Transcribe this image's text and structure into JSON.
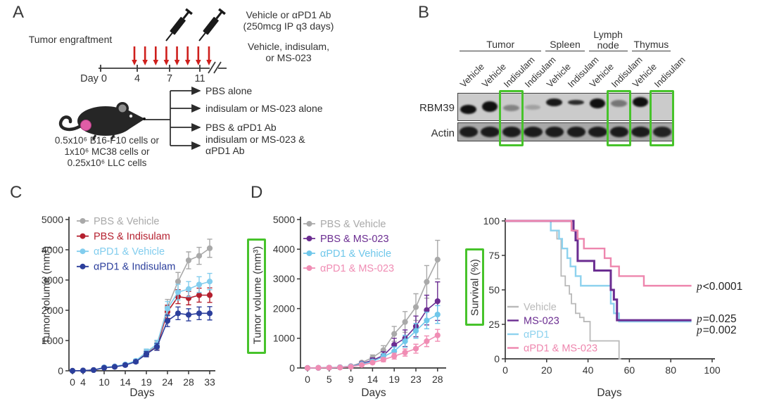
{
  "panels": {
    "a": {
      "label": "A",
      "engraftment": "Tumor engraftment",
      "timeline_ticks": [
        "Day 0",
        "4",
        "7",
        "11"
      ],
      "injection_arrow_count": 8,
      "note1": [
        "Vehicle or αPD1 Ab",
        "(250mcg IP q3 days)"
      ],
      "note2": [
        "Vehicle, indisulam,",
        "or MS-023"
      ],
      "branches": [
        "PBS alone",
        "indisulam or MS-023 alone",
        "PBS & αPD1 Ab",
        "indisulam or MS-023 & αPD1 Ab"
      ],
      "cells": [
        "0.5x10⁶ B16-F10 cells or",
        "1x10⁶ MC38 cells or",
        "0.25x10⁶ LLC cells"
      ]
    },
    "b": {
      "label": "B",
      "tissues": [
        {
          "name": "Tumor",
          "lanes": [
            "Vehicle",
            "Vehicle",
            "Indisulam",
            "Indisulam"
          ]
        },
        {
          "name": "Spleen",
          "lanes": [
            "Vehicle",
            "Indisulam"
          ]
        },
        {
          "name": "Lymph node",
          "lanes": [
            "Vehicle",
            "Indisulam"
          ]
        },
        {
          "name": "Thymus",
          "lanes": [
            "Vehicle",
            "Indisulam"
          ]
        }
      ],
      "proteins": [
        {
          "name": "RBM39",
          "intensities": [
            1,
            1,
            0.38,
            0.22,
            0.95,
            0.85,
            1,
            0.45,
            1,
            0
          ]
        },
        {
          "name": "Actin",
          "intensities": [
            0.92,
            0.92,
            0.92,
            0.92,
            0.92,
            0.92,
            0.92,
            0.92,
            0.92,
            0.88
          ]
        }
      ],
      "highlighted_lanes": [
        3,
        8,
        10
      ],
      "highlight_color": "#47c32b"
    },
    "c": {
      "label": "C"
    },
    "d": {
      "label": "D"
    }
  },
  "chart_data": [
    {
      "id": "tumor_volume_c",
      "type": "line",
      "xlabel": "Days",
      "ylabel": "Tumor volume (mm³)",
      "ylim": [
        0,
        5000
      ],
      "yticks": [
        0,
        1000,
        2000,
        3000,
        4000,
        5000
      ],
      "x": [
        0,
        4,
        7,
        10,
        12,
        14,
        16,
        19,
        21,
        24,
        26,
        28,
        30,
        33
      ],
      "xticks": [
        0,
        4,
        10,
        14,
        19,
        24,
        28,
        33
      ],
      "series": [
        {
          "name": "PBS & Vehicle",
          "color": "#a9a9a9",
          "values": [
            0,
            8,
            25,
            110,
            140,
            200,
            320,
            600,
            850,
            2100,
            2950,
            3650,
            3800,
            4050
          ],
          "err": [
            0,
            0,
            0,
            25,
            30,
            40,
            55,
            100,
            130,
            260,
            300,
            280,
            280,
            300
          ]
        },
        {
          "name": "PBS & Indisulam",
          "color": "#b41f2e",
          "values": [
            0,
            8,
            25,
            105,
            135,
            195,
            310,
            560,
            800,
            1950,
            2450,
            2400,
            2500,
            2500
          ],
          "err": [
            0,
            0,
            0,
            25,
            30,
            40,
            50,
            90,
            120,
            220,
            230,
            220,
            230,
            240
          ]
        },
        {
          "name": "αPD1 & Vehicle",
          "color": "#82cdee",
          "values": [
            0,
            8,
            25,
            115,
            145,
            210,
            330,
            620,
            880,
            2050,
            2600,
            2700,
            2850,
            2950
          ],
          "err": [
            0,
            0,
            0,
            25,
            30,
            40,
            55,
            100,
            130,
            240,
            260,
            250,
            260,
            270
          ]
        },
        {
          "name": "αPD1 & Indisulam",
          "color": "#2c3f9c",
          "values": [
            0,
            8,
            25,
            100,
            130,
            190,
            300,
            550,
            790,
            1650,
            1900,
            1850,
            1900,
            1900
          ],
          "err": [
            0,
            0,
            0,
            25,
            30,
            40,
            50,
            90,
            115,
            190,
            210,
            200,
            210,
            220
          ]
        }
      ]
    },
    {
      "id": "tumor_volume_d",
      "type": "line",
      "xlabel": "Days",
      "ylabel": "Tumor volume (mm³)",
      "ylim": [
        0,
        5000
      ],
      "yticks": [
        0,
        1000,
        2000,
        3000,
        4000,
        5000
      ],
      "x": [
        0,
        3,
        5,
        7,
        9,
        12,
        14,
        16,
        19,
        21,
        23,
        26,
        28
      ],
      "xticks": [
        0,
        5,
        9,
        14,
        19,
        23,
        28
      ],
      "series": [
        {
          "name": "PBS & Vehicle",
          "color": "#a9a9a9",
          "values": [
            0,
            5,
            10,
            25,
            60,
            180,
            350,
            600,
            1150,
            1550,
            2050,
            2900,
            3650
          ],
          "err": [
            0,
            0,
            0,
            10,
            20,
            50,
            90,
            150,
            250,
            350,
            450,
            550,
            650
          ]
        },
        {
          "name": "PBS & MS-023",
          "color": "#6b2d91",
          "values": [
            0,
            5,
            10,
            20,
            50,
            150,
            260,
            420,
            780,
            1000,
            1400,
            1950,
            2250
          ],
          "err": [
            0,
            0,
            0,
            10,
            20,
            45,
            80,
            130,
            220,
            280,
            350,
            500,
            650
          ]
        },
        {
          "name": "αPD1 & Vehicle",
          "color": "#6fc7ea",
          "values": [
            0,
            5,
            10,
            20,
            50,
            130,
            220,
            380,
            560,
            900,
            1250,
            1600,
            1800
          ],
          "err": [
            0,
            0,
            0,
            10,
            20,
            40,
            60,
            100,
            150,
            200,
            250,
            280,
            300
          ]
        },
        {
          "name": "αPD1 & MS-023",
          "color": "#f08db4",
          "values": [
            0,
            5,
            10,
            15,
            40,
            100,
            180,
            280,
            400,
            520,
            650,
            900,
            1100
          ],
          "err": [
            0,
            0,
            0,
            10,
            15,
            30,
            45,
            70,
            100,
            120,
            150,
            180,
            200
          ]
        }
      ]
    },
    {
      "id": "survival",
      "type": "step",
      "xlabel": "Days",
      "ylabel": "Survival (%)",
      "ylim": [
        0,
        100
      ],
      "xlim": [
        0,
        100
      ],
      "yticks": [
        0,
        25,
        50,
        75,
        100
      ],
      "xticks": [
        0,
        20,
        40,
        60,
        80,
        100
      ],
      "series": [
        {
          "name": "Vehicle",
          "color": "#b9b9b9",
          "width": 1.8,
          "points": [
            [
              0,
              100
            ],
            [
              22,
              100
            ],
            [
              22,
              93
            ],
            [
              25,
              93
            ],
            [
              25,
              87
            ],
            [
              27,
              87
            ],
            [
              27,
              60
            ],
            [
              29,
              60
            ],
            [
              29,
              53
            ],
            [
              31,
              53
            ],
            [
              31,
              47
            ],
            [
              32,
              47
            ],
            [
              32,
              40
            ],
            [
              34,
              40
            ],
            [
              34,
              33
            ],
            [
              36,
              33
            ],
            [
              36,
              30
            ],
            [
              38,
              30
            ],
            [
              38,
              27
            ],
            [
              41,
              27
            ],
            [
              41,
              13
            ],
            [
              55,
              13
            ],
            [
              55,
              0
            ],
            [
              56,
              0
            ]
          ]
        },
        {
          "name": "MS-023",
          "color": "#6b2d91",
          "width": 3,
          "points": [
            [
              0,
              100
            ],
            [
              33,
              100
            ],
            [
              33,
              93
            ],
            [
              34,
              93
            ],
            [
              34,
              86
            ],
            [
              35,
              86
            ],
            [
              35,
              71
            ],
            [
              43,
              71
            ],
            [
              43,
              64
            ],
            [
              51,
              64
            ],
            [
              51,
              50
            ],
            [
              52.5,
              50
            ],
            [
              52.5,
              43
            ],
            [
              54,
              43
            ],
            [
              54,
              28
            ],
            [
              90,
              28
            ]
          ]
        },
        {
          "name": "αPD1",
          "color": "#8ed2ee",
          "width": 2.4,
          "points": [
            [
              0,
              100
            ],
            [
              22,
              100
            ],
            [
              22,
              93
            ],
            [
              26,
              93
            ],
            [
              26,
              87
            ],
            [
              27.5,
              87
            ],
            [
              27.5,
              80
            ],
            [
              30,
              80
            ],
            [
              30,
              73
            ],
            [
              31.5,
              73
            ],
            [
              31.5,
              67
            ],
            [
              34,
              67
            ],
            [
              34,
              60
            ],
            [
              36.5,
              60
            ],
            [
              36.5,
              53
            ],
            [
              51,
              53
            ],
            [
              51,
              40
            ],
            [
              52.5,
              40
            ],
            [
              52.5,
              33
            ],
            [
              55,
              33
            ],
            [
              55,
              27
            ],
            [
              90,
              27
            ]
          ]
        },
        {
          "name": "αPD1 & MS-023",
          "color": "#ee86ae",
          "width": 2.4,
          "points": [
            [
              0,
              100
            ],
            [
              32,
              100
            ],
            [
              32,
              93
            ],
            [
              35,
              93
            ],
            [
              35,
              87
            ],
            [
              38,
              87
            ],
            [
              38,
              80
            ],
            [
              48,
              80
            ],
            [
              48,
              73
            ],
            [
              51,
              73
            ],
            [
              51,
              67
            ],
            [
              55,
              67
            ],
            [
              55,
              60
            ],
            [
              67,
              60
            ],
            [
              67,
              53
            ],
            [
              90,
              53
            ]
          ]
        }
      ],
      "p_values": [
        {
          "symbol": "p",
          "value": "<0.0001"
        },
        {
          "symbol": "p",
          "value": "=0.025"
        },
        {
          "symbol": "p",
          "value": "=0.002"
        }
      ]
    }
  ]
}
